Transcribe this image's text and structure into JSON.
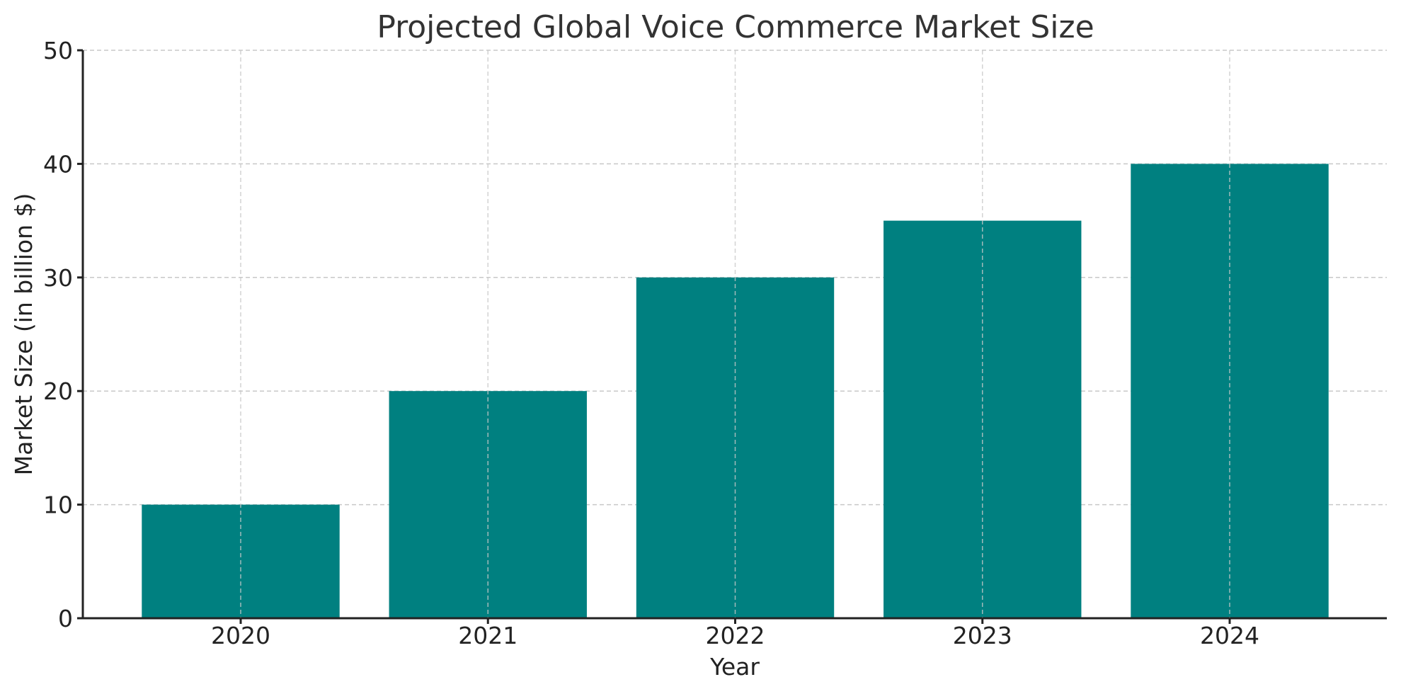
{
  "chart_data": {
    "type": "bar",
    "title": "Projected Global Voice Commerce Market Size",
    "xlabel": "Year",
    "ylabel": "Market Size (in billion $)",
    "categories": [
      "2020",
      "2021",
      "2022",
      "2023",
      "2024"
    ],
    "values": [
      10,
      20,
      30,
      35,
      40
    ],
    "ylim": [
      0,
      50
    ],
    "yticks": [
      0,
      10,
      20,
      30,
      40,
      50
    ],
    "grid": true,
    "legend": null,
    "colors": {
      "bar": "#008080",
      "grid": "#c8c8c8",
      "axis": "#222222",
      "title": "#333333"
    }
  }
}
